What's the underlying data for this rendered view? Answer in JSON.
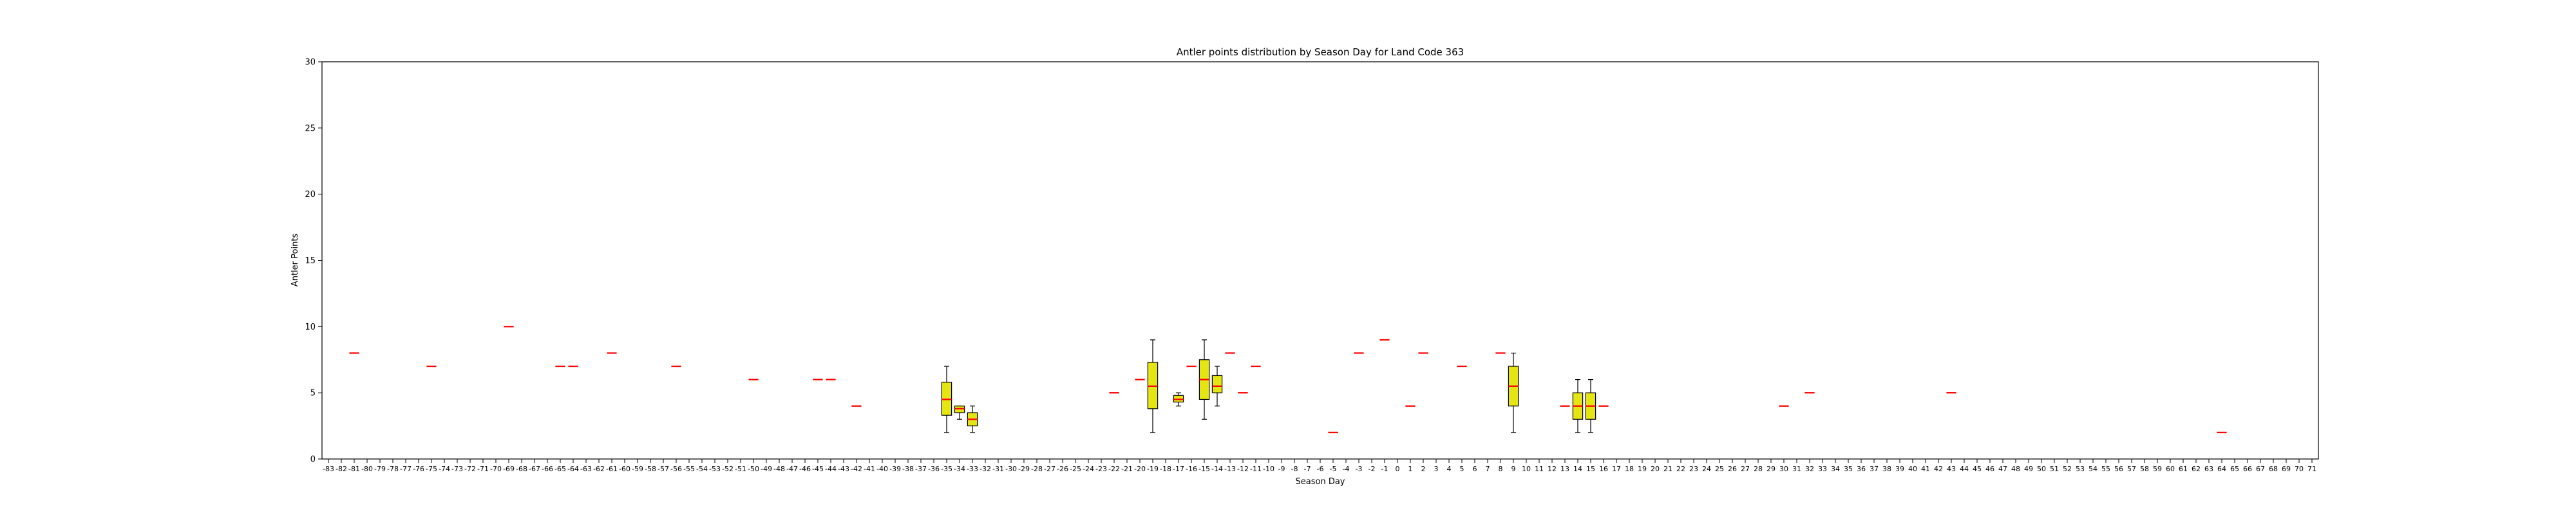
{
  "chart_data": {
    "type": "box",
    "title": "Antler points distribution by Season Day for Land Code 363",
    "xlabel": "Season Day",
    "ylabel": "Antler Points",
    "x_range": [
      -83,
      71
    ],
    "ylim": [
      0,
      30
    ],
    "yticks": [
      0,
      5,
      10,
      15,
      20,
      25,
      30
    ],
    "grid": false,
    "colors": {
      "box_fill": "#e5e512",
      "median": "#ff0000",
      "edge": "#000000",
      "background": "#ffffff"
    },
    "boxes": [
      {
        "x": -81,
        "min": 8,
        "q1": 8,
        "median": 8,
        "q3": 8,
        "max": 8
      },
      {
        "x": -75,
        "min": 7,
        "q1": 7,
        "median": 7,
        "q3": 7,
        "max": 7
      },
      {
        "x": -69,
        "min": 10,
        "q1": 10,
        "median": 10,
        "q3": 10,
        "max": 10
      },
      {
        "x": -65,
        "min": 7,
        "q1": 7,
        "median": 7,
        "q3": 7,
        "max": 7
      },
      {
        "x": -64,
        "min": 7,
        "q1": 7,
        "median": 7,
        "q3": 7,
        "max": 7
      },
      {
        "x": -61,
        "min": 8,
        "q1": 8,
        "median": 8,
        "q3": 8,
        "max": 8
      },
      {
        "x": -56,
        "min": 7,
        "q1": 7,
        "median": 7,
        "q3": 7,
        "max": 7
      },
      {
        "x": -50,
        "min": 6,
        "q1": 6,
        "median": 6,
        "q3": 6,
        "max": 6
      },
      {
        "x": -45,
        "min": 6,
        "q1": 6,
        "median": 6,
        "q3": 6,
        "max": 6
      },
      {
        "x": -44,
        "min": 6,
        "q1": 6,
        "median": 6,
        "q3": 6,
        "max": 6
      },
      {
        "x": -42,
        "min": 4,
        "q1": 4,
        "median": 4,
        "q3": 4,
        "max": 4
      },
      {
        "x": -35,
        "min": 2,
        "q1": 3.3,
        "median": 4.5,
        "q3": 5.8,
        "max": 7
      },
      {
        "x": -34,
        "min": 3,
        "q1": 3.5,
        "median": 3.8,
        "q3": 4,
        "max": 4
      },
      {
        "x": -33,
        "min": 2,
        "q1": 2.5,
        "median": 3,
        "q3": 3.5,
        "max": 4
      },
      {
        "x": -22,
        "min": 5,
        "q1": 5,
        "median": 5,
        "q3": 5,
        "max": 5
      },
      {
        "x": -20,
        "min": 6,
        "q1": 6,
        "median": 6,
        "q3": 6,
        "max": 6
      },
      {
        "x": -19,
        "min": 2,
        "q1": 3.8,
        "median": 5.5,
        "q3": 7.3,
        "max": 9
      },
      {
        "x": -17,
        "min": 4,
        "q1": 4.3,
        "median": 4.5,
        "q3": 4.8,
        "max": 5
      },
      {
        "x": -16,
        "min": 7,
        "q1": 7,
        "median": 7,
        "q3": 7,
        "max": 7
      },
      {
        "x": -15,
        "min": 3,
        "q1": 4.5,
        "median": 6,
        "q3": 7.5,
        "max": 9
      },
      {
        "x": -14,
        "min": 4,
        "q1": 5,
        "median": 5.5,
        "q3": 6.3,
        "max": 7
      },
      {
        "x": -13,
        "min": 8,
        "q1": 8,
        "median": 8,
        "q3": 8,
        "max": 8
      },
      {
        "x": -12,
        "min": 5,
        "q1": 5,
        "median": 5,
        "q3": 5,
        "max": 5
      },
      {
        "x": -11,
        "min": 7,
        "q1": 7,
        "median": 7,
        "q3": 7,
        "max": 7
      },
      {
        "x": -5,
        "min": 2,
        "q1": 2,
        "median": 2,
        "q3": 2,
        "max": 2
      },
      {
        "x": -3,
        "min": 8,
        "q1": 8,
        "median": 8,
        "q3": 8,
        "max": 8
      },
      {
        "x": -1,
        "min": 9,
        "q1": 9,
        "median": 9,
        "q3": 9,
        "max": 9
      },
      {
        "x": 1,
        "min": 4,
        "q1": 4,
        "median": 4,
        "q3": 4,
        "max": 4
      },
      {
        "x": 2,
        "min": 8,
        "q1": 8,
        "median": 8,
        "q3": 8,
        "max": 8
      },
      {
        "x": 5,
        "min": 7,
        "q1": 7,
        "median": 7,
        "q3": 7,
        "max": 7
      },
      {
        "x": 8,
        "min": 8,
        "q1": 8,
        "median": 8,
        "q3": 8,
        "max": 8
      },
      {
        "x": 9,
        "min": 2,
        "q1": 4,
        "median": 5.5,
        "q3": 7,
        "max": 8
      },
      {
        "x": 13,
        "min": 4,
        "q1": 4,
        "median": 4,
        "q3": 4,
        "max": 4
      },
      {
        "x": 14,
        "min": 2,
        "q1": 3,
        "median": 4,
        "q3": 5,
        "max": 6
      },
      {
        "x": 15,
        "min": 2,
        "q1": 3,
        "median": 4,
        "q3": 5,
        "max": 6
      },
      {
        "x": 16,
        "min": 4,
        "q1": 4,
        "median": 4,
        "q3": 4,
        "max": 4
      },
      {
        "x": 30,
        "min": 4,
        "q1": 4,
        "median": 4,
        "q3": 4,
        "max": 4
      },
      {
        "x": 32,
        "min": 5,
        "q1": 5,
        "median": 5,
        "q3": 5,
        "max": 5
      },
      {
        "x": 43,
        "min": 5,
        "q1": 5,
        "median": 5,
        "q3": 5,
        "max": 5
      },
      {
        "x": 64,
        "min": 2,
        "q1": 2,
        "median": 2,
        "q3": 2,
        "max": 2
      }
    ]
  }
}
